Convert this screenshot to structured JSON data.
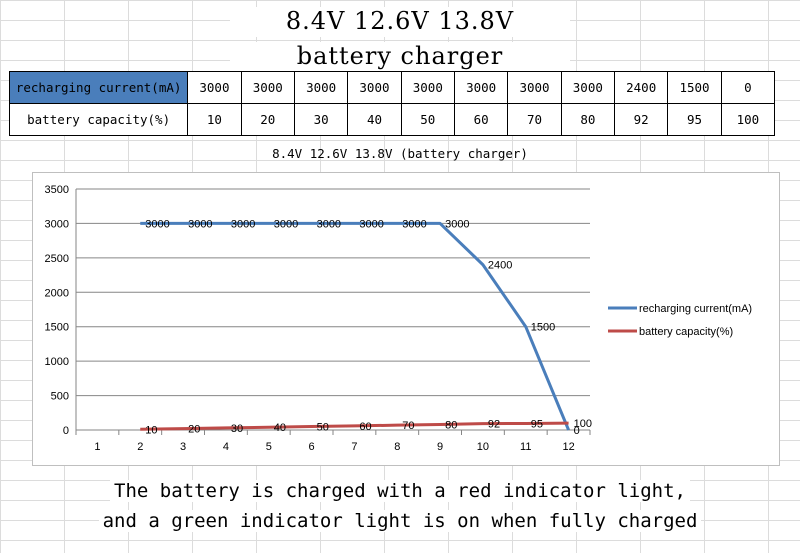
{
  "header": {
    "title_line1": "8.4V 12.6V 13.8V",
    "title_line2": "battery charger"
  },
  "table": {
    "rows": [
      {
        "label": "recharging current(mA)",
        "cells": [
          "3000",
          "3000",
          "3000",
          "3000",
          "3000",
          "3000",
          "3000",
          "3000",
          "2400",
          "1500",
          "0"
        ]
      },
      {
        "label": "battery capacity(%)",
        "cells": [
          "10",
          "20",
          "30",
          "40",
          "50",
          "60",
          "70",
          "80",
          "92",
          "95",
          "100"
        ]
      }
    ]
  },
  "chart_caption": "8.4V 12.6V 13.8V  (battery charger)",
  "chart_data": {
    "type": "line",
    "x": [
      1,
      2,
      3,
      4,
      5,
      6,
      7,
      8,
      9,
      10,
      11,
      12
    ],
    "x_tick_labels": [
      "1",
      "2",
      "3",
      "4",
      "5",
      "6",
      "7",
      "8",
      "9",
      "10",
      "11",
      "12"
    ],
    "series": [
      {
        "name": "recharging current(mA)",
        "color": "#4a7ebb",
        "x": [
          2,
          3,
          4,
          5,
          6,
          7,
          8,
          9,
          10,
          11,
          12
        ],
        "values": [
          3000,
          3000,
          3000,
          3000,
          3000,
          3000,
          3000,
          3000,
          2400,
          1500,
          0
        ],
        "labels": [
          "3000",
          "3000",
          "3000",
          "3000",
          "3000",
          "3000",
          "3000",
          "3000",
          "2400",
          "1500",
          "0"
        ]
      },
      {
        "name": "battery capacity(%)",
        "color": "#be4b48",
        "x": [
          2,
          3,
          4,
          5,
          6,
          7,
          8,
          9,
          10,
          11,
          12
        ],
        "values": [
          10,
          20,
          30,
          40,
          50,
          60,
          70,
          80,
          92,
          95,
          100
        ],
        "labels": [
          "10",
          "20",
          "30",
          "40",
          "50",
          "60",
          "70",
          "80",
          "92",
          "95",
          "100"
        ]
      }
    ],
    "ylim": [
      0,
      3500
    ],
    "y_ticks": [
      0,
      500,
      1000,
      1500,
      2000,
      2500,
      3000,
      3500
    ],
    "xlim": [
      0.5,
      12.5
    ],
    "grid": "horizontal",
    "legend": "right"
  },
  "footer": {
    "line1": "The battery is charged with a red indicator light,",
    "line2": "and a green indicator light is on when fully charged"
  }
}
